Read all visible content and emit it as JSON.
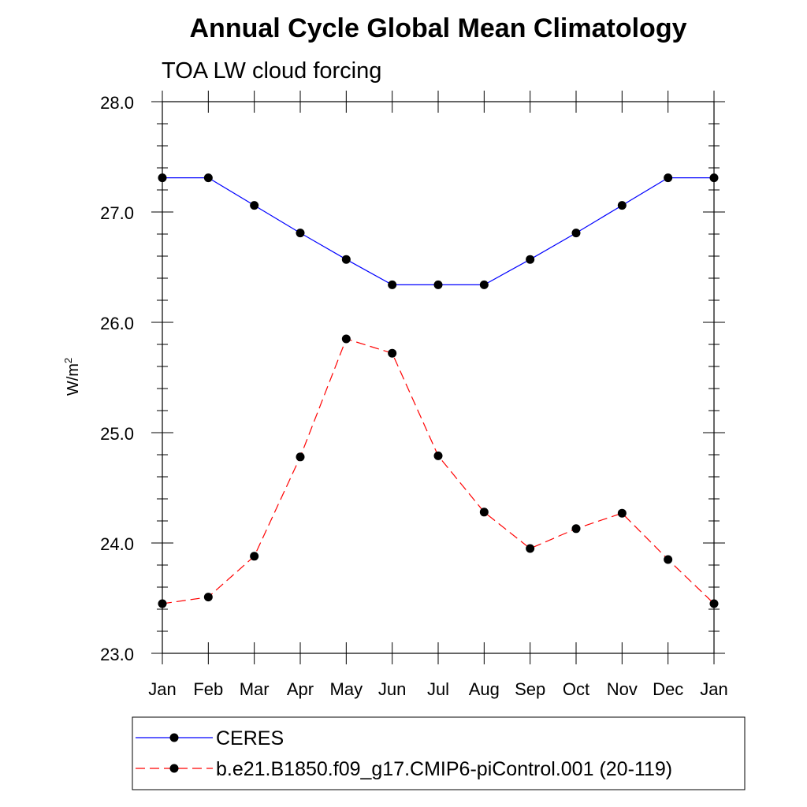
{
  "chart_data": {
    "type": "line",
    "title": "Annual Cycle Global Mean Climatology",
    "subtitle": "TOA LW cloud forcing",
    "xlabel": "",
    "ylabel": "W/m",
    "ylabel_superscript": "2",
    "categories": [
      "Jan",
      "Feb",
      "Mar",
      "Apr",
      "May",
      "Jun",
      "Jul",
      "Aug",
      "Sep",
      "Oct",
      "Nov",
      "Dec",
      "Jan"
    ],
    "ylim": [
      23.0,
      28.0
    ],
    "yticks": [
      "23.0",
      "24.0",
      "25.0",
      "26.0",
      "27.0",
      "28.0"
    ],
    "grid": false,
    "legend": "bottom",
    "series": [
      {
        "name": "CERES",
        "color": "#0000ff",
        "line_style": "solid",
        "marker": "filled-circle",
        "values": [
          27.31,
          27.31,
          27.06,
          26.81,
          26.57,
          26.34,
          26.34,
          26.34,
          26.57,
          26.81,
          27.06,
          27.31,
          27.31
        ]
      },
      {
        "name": "b.e21.B1850.f09_g17.CMIP6-piControl.001 (20-119)",
        "color": "#ff0000",
        "line_style": "dashed",
        "marker": "filled-circle",
        "values": [
          23.45,
          23.51,
          23.88,
          24.78,
          25.85,
          25.72,
          24.79,
          24.28,
          23.95,
          24.13,
          24.27,
          23.85,
          23.45
        ]
      }
    ]
  }
}
